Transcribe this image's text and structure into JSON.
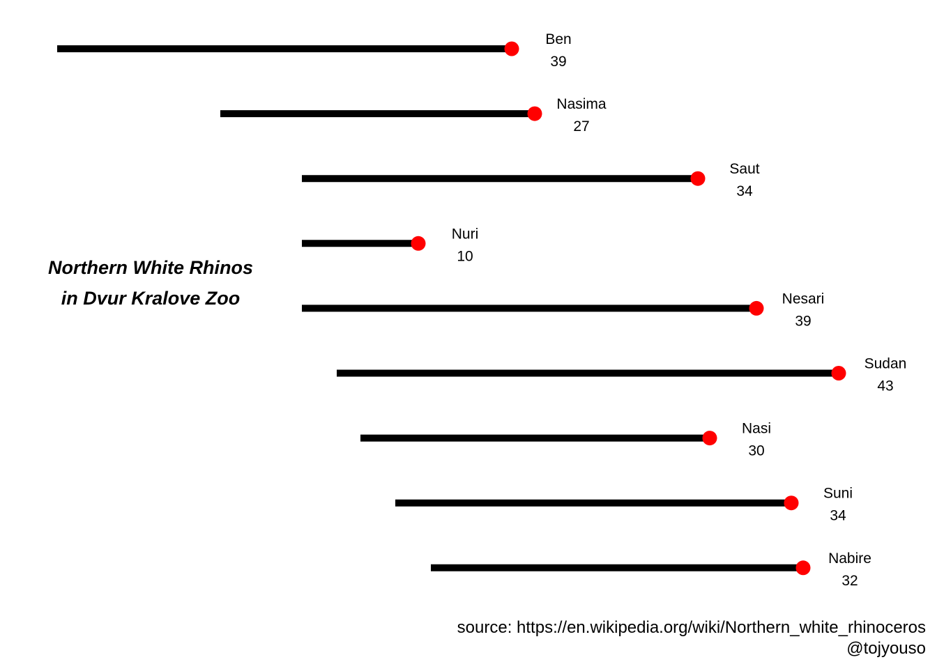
{
  "chart_data": {
    "type": "dumbbell",
    "title_lines": [
      "Northern White Rhinos",
      "in Dvur Kralove Zoo"
    ],
    "caption_lines": [
      "source: https://en.wikipedia.org/wiki/Northern_white_rhinoceros",
      "@tojyouso"
    ],
    "x_domain": [
      1975,
      2018
    ],
    "axes_visible": false,
    "grid": false,
    "colors": {
      "segment": "#000000",
      "endpoint": "#ff0000"
    },
    "rhinos": [
      {
        "name": "Ben",
        "start": 1967.5,
        "end": 2006.5,
        "age": "39"
      },
      {
        "name": "Nasima",
        "start": 1981.5,
        "end": 2008.5,
        "age": "27"
      },
      {
        "name": "Saut",
        "start": 1988.5,
        "end": 2022.5,
        "age": "34"
      },
      {
        "name": "Nuri",
        "start": 1988.5,
        "end": 1998.5,
        "age": "10"
      },
      {
        "name": "Nesari",
        "start": 1988.5,
        "end": 2027.5,
        "age": "39"
      },
      {
        "name": "Sudan",
        "start": 1991.5,
        "end": 2034.5,
        "age": "43"
      },
      {
        "name": "Nasi",
        "start": 1993.5,
        "end": 2023.5,
        "age": "30"
      },
      {
        "name": "Suni",
        "start": 1996.5,
        "end": 2030.5,
        "age": "34"
      },
      {
        "name": "Nabire",
        "start": 1999.5,
        "end": 2031.5,
        "age": "32"
      }
    ]
  }
}
